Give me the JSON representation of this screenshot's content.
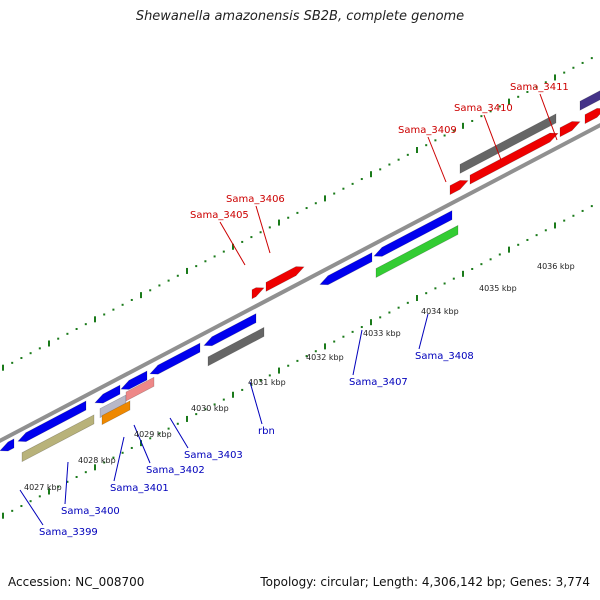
{
  "title": "Shewanella amazonensis SB2B, complete genome",
  "footer": {
    "accession": "Accession: NC_008700",
    "summary": "Topology: circular; Length: 4,306,142 bp; Genes: 3,774"
  },
  "ticks": [
    "4027 kbp",
    "4028 kbp",
    "4029 kbp",
    "4030 kbp",
    "4031 kbp",
    "4032 kbp",
    "4033 kbp",
    "4034 kbp",
    "4035 kbp",
    "4036 kbp"
  ],
  "upper_labels": [
    "Sama_3405",
    "Sama_3406",
    "Sama_3409",
    "Sama_3410",
    "Sama_3411"
  ],
  "lower_labels": [
    "Sama_3399",
    "Sama_3400",
    "Sama_3401",
    "Sama_3402",
    "Sama_3403",
    "rbn",
    "Sama_3407",
    "Sama_3408"
  ],
  "colors": {
    "forward_label": "#cc0000",
    "reverse_label": "#0000bb",
    "backbone": "#909090",
    "tick": "#1a7a1a",
    "blue_gene": "#0000ee",
    "red_gene": "#ee0000",
    "gray_gene": "#666666",
    "green_gene": "#33cc33",
    "olive_gene": "#b8b27a",
    "pink_gene": "#ee8888",
    "orange_gene": "#ee8800",
    "purple_gene": "#443388"
  }
}
